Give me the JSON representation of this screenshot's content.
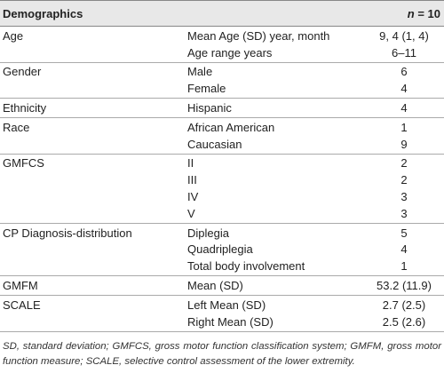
{
  "table": {
    "header": {
      "title": "Demographics",
      "n_label": "n",
      "n_value": "= 10"
    },
    "groups": [
      {
        "label": "Age",
        "rows": [
          {
            "item": "Mean Age (SD) year, month",
            "value": "9, 4 (1, 4)"
          },
          {
            "item": "Age range years",
            "value": "6–11"
          }
        ]
      },
      {
        "label": "Gender",
        "rows": [
          {
            "item": "Male",
            "value": "6"
          },
          {
            "item": "Female",
            "value": "4"
          }
        ]
      },
      {
        "label": "Ethnicity",
        "rows": [
          {
            "item": "Hispanic",
            "value": "4"
          }
        ]
      },
      {
        "label": "Race",
        "rows": [
          {
            "item": "African American",
            "value": "1"
          },
          {
            "item": "Caucasian",
            "value": "9"
          }
        ]
      },
      {
        "label": "GMFCS",
        "rows": [
          {
            "item": "II",
            "value": "2"
          },
          {
            "item": "III",
            "value": "2"
          },
          {
            "item": "IV",
            "value": "3"
          },
          {
            "item": "V",
            "value": "3"
          }
        ]
      },
      {
        "label": "CP Diagnosis-distribution",
        "rows": [
          {
            "item": "Diplegia",
            "value": "5"
          },
          {
            "item": "Quadriplegia",
            "value": "4"
          },
          {
            "item": "Total body involvement",
            "value": "1"
          }
        ]
      },
      {
        "label": "GMFM",
        "rows": [
          {
            "item": "Mean (SD)",
            "value": "53.2 (11.9)"
          }
        ]
      },
      {
        "label": "SCALE",
        "rows": [
          {
            "item": "Left Mean (SD)",
            "value": "2.7 (2.5)"
          },
          {
            "item": "Right Mean (SD)",
            "value": "2.5 (2.6)"
          }
        ]
      }
    ],
    "footnote": "SD, standard deviation; GMFCS, gross motor function classification system; GMFM, gross motor function measure; SCALE, selective control assessment of the lower extremity."
  }
}
